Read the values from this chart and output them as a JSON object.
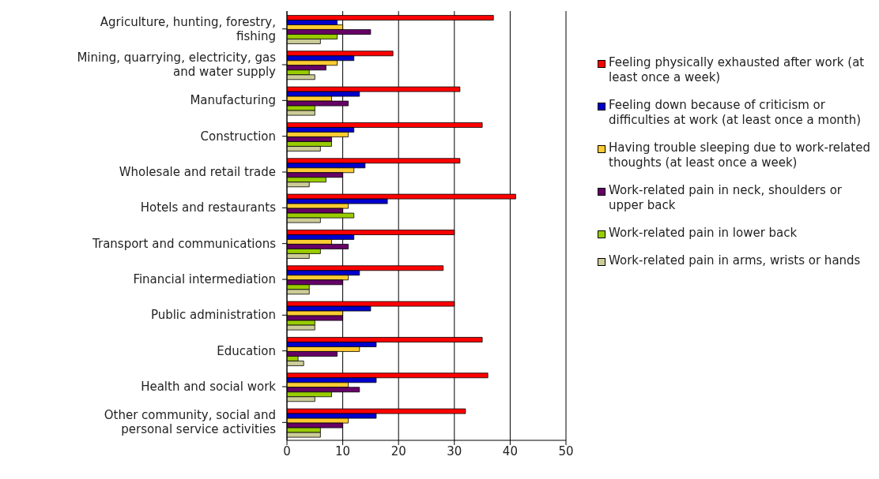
{
  "chart_data": {
    "type": "bar",
    "orientation": "horizontal",
    "categories": [
      "Agriculture, hunting, forestry, fishing",
      "Mining, quarrying, electricity, gas and water supply",
      "Manufacturing",
      "Construction",
      "Wholesale and retail trade",
      "Hotels and restaurants",
      "Transport and communications",
      "Financial intermediation",
      "Public administration",
      "Education",
      "Health and social work",
      "Other community, social and personal service activities"
    ],
    "series": [
      {
        "name": "Feeling physically exhausted after work (at least once a week)",
        "color": "#ff0000",
        "values": [
          37,
          19,
          31,
          35,
          31,
          41,
          30,
          28,
          30,
          35,
          36,
          32
        ]
      },
      {
        "name": "Feeling down because of criticism or difficulties at work (at least once a month)",
        "color": "#0000cc",
        "values": [
          9,
          12,
          13,
          12,
          14,
          18,
          12,
          13,
          15,
          16,
          16,
          16
        ]
      },
      {
        "name": "Having trouble sleeping due to work-related thoughts (at least once a week)",
        "color": "#ffcc33",
        "values": [
          10,
          9,
          8,
          11,
          12,
          11,
          8,
          11,
          10,
          13,
          11,
          11
        ]
      },
      {
        "name": "Work-related pain in neck, shoulders or upper back",
        "color": "#660066",
        "values": [
          15,
          7,
          11,
          8,
          10,
          10,
          11,
          10,
          10,
          9,
          13,
          10
        ]
      },
      {
        "name": "Work-related pain in lower back",
        "color": "#99cc00",
        "values": [
          9,
          4,
          5,
          8,
          7,
          12,
          6,
          4,
          5,
          2,
          8,
          6
        ]
      },
      {
        "name": "Work-related pain in arms, wrists or hands",
        "color": "#cccc99",
        "values": [
          6,
          5,
          5,
          6,
          4,
          6,
          4,
          4,
          5,
          3,
          5,
          6
        ]
      }
    ],
    "xlim": [
      0,
      50
    ],
    "xticks": [
      0,
      10,
      20,
      30,
      40,
      50
    ],
    "grid": "x",
    "legend": "right"
  }
}
